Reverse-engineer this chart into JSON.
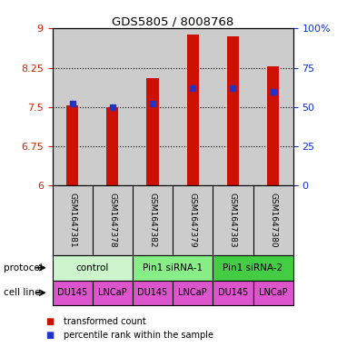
{
  "title": "GDS5805 / 8008768",
  "samples": [
    "GSM1647381",
    "GSM1647378",
    "GSM1647382",
    "GSM1647379",
    "GSM1647383",
    "GSM1647380"
  ],
  "red_values": [
    7.53,
    7.5,
    8.05,
    8.88,
    8.85,
    8.28
  ],
  "blue_values_pct": [
    52,
    50,
    52,
    62,
    62,
    60
  ],
  "ylim_left": [
    6,
    9
  ],
  "ylim_right": [
    0,
    100
  ],
  "yticks_left": [
    6,
    6.75,
    7.5,
    8.25,
    9
  ],
  "yticks_right": [
    0,
    25,
    50,
    75,
    100
  ],
  "ytick_labels_left": [
    "6",
    "6.75",
    "7.5",
    "8.25",
    "9"
  ],
  "ytick_labels_right": [
    "0",
    "25",
    "50",
    "75",
    "100%"
  ],
  "hgrid_values": [
    6.75,
    7.5,
    8.25
  ],
  "protocols": [
    {
      "label": "control",
      "cols": [
        0,
        1
      ],
      "color": "#ccf5cc"
    },
    {
      "label": "Pin1 siRNA-1",
      "cols": [
        2,
        3
      ],
      "color": "#88ee88"
    },
    {
      "label": "Pin1 siRNA-2",
      "cols": [
        4,
        5
      ],
      "color": "#44cc44"
    }
  ],
  "cell_lines": [
    "DU145",
    "LNCaP",
    "DU145",
    "LNCaP",
    "DU145",
    "LNCaP"
  ],
  "cell_line_color": "#dd55cc",
  "bar_color": "#cc1100",
  "dot_color": "#2233cc",
  "bg_color": "#cccccc",
  "bar_width": 0.3,
  "left_axis_color": "#cc2200",
  "right_axis_color": "#1133cc",
  "legend_red_label": "transformed count",
  "legend_blue_label": "percentile rank within the sample",
  "protocol_label": "protocol",
  "cell_line_label": "cell line"
}
